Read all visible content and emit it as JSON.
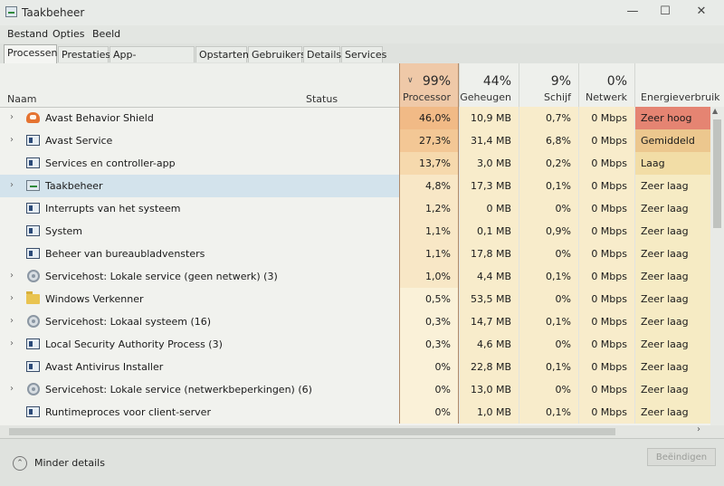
{
  "window": {
    "title": "Taakbeheer",
    "minimize": "—",
    "maximize": "☐",
    "close": "✕"
  },
  "menu": [
    "Bestand",
    "Opties",
    "Beeld"
  ],
  "tabs": [
    "Processen",
    "Prestaties",
    "App-geschiedenis",
    "Opstarten",
    "Gebruikers",
    "Details",
    "Services"
  ],
  "columns": {
    "name": "Naam",
    "status": "Status",
    "processor": {
      "pct": "99%",
      "label": "Processor"
    },
    "memory": {
      "pct": "44%",
      "label": "Geheugen"
    },
    "disk": {
      "pct": "9%",
      "label": "Schijf"
    },
    "network": {
      "pct": "0%",
      "label": "Netwerk"
    },
    "energy": "Energieverbruik"
  },
  "rows": [
    {
      "name": "Avast Behavior Shield",
      "icon": "avast-icon",
      "expand": true,
      "cpu": "46,0%",
      "mem": "10,9 MB",
      "disk": "0,7%",
      "net": "0 Mbps",
      "energy": "Zeer hoog"
    },
    {
      "name": "Avast Service",
      "icon": "service-icon",
      "expand": true,
      "cpu": "27,3%",
      "mem": "31,4 MB",
      "disk": "6,8%",
      "net": "0 Mbps",
      "energy": "Gemiddeld"
    },
    {
      "name": "Services en controller-app",
      "icon": "service-icon",
      "expand": false,
      "cpu": "13,7%",
      "mem": "3,0 MB",
      "disk": "0,2%",
      "net": "0 Mbps",
      "energy": "Laag"
    },
    {
      "name": "Taakbeheer",
      "icon": "taskmanager-icon",
      "expand": true,
      "cpu": "4,8%",
      "mem": "17,3 MB",
      "disk": "0,1%",
      "net": "0 Mbps",
      "energy": "Zeer laag"
    },
    {
      "name": "Interrupts van het systeem",
      "icon": "service-icon",
      "expand": false,
      "cpu": "1,2%",
      "mem": "0 MB",
      "disk": "0%",
      "net": "0 Mbps",
      "energy": "Zeer laag"
    },
    {
      "name": "System",
      "icon": "service-icon",
      "expand": false,
      "cpu": "1,1%",
      "mem": "0,1 MB",
      "disk": "0,9%",
      "net": "0 Mbps",
      "energy": "Zeer laag"
    },
    {
      "name": "Beheer van bureaubladvensters",
      "icon": "service-icon",
      "expand": false,
      "cpu": "1,1%",
      "mem": "17,8 MB",
      "disk": "0%",
      "net": "0 Mbps",
      "energy": "Zeer laag"
    },
    {
      "name": "Servicehost: Lokale service (geen netwerk) (3)",
      "icon": "gear-icon",
      "expand": true,
      "cpu": "1,0%",
      "mem": "4,4 MB",
      "disk": "0,1%",
      "net": "0 Mbps",
      "energy": "Zeer laag"
    },
    {
      "name": "Windows Verkenner",
      "icon": "folder-icon",
      "expand": true,
      "cpu": "0,5%",
      "mem": "53,5 MB",
      "disk": "0%",
      "net": "0 Mbps",
      "energy": "Zeer laag"
    },
    {
      "name": "Servicehost: Lokaal systeem (16)",
      "icon": "gear-icon",
      "expand": true,
      "cpu": "0,3%",
      "mem": "14,7 MB",
      "disk": "0,1%",
      "net": "0 Mbps",
      "energy": "Zeer laag"
    },
    {
      "name": "Local Security Authority Process (3)",
      "icon": "service-icon",
      "expand": true,
      "cpu": "0,3%",
      "mem": "4,6 MB",
      "disk": "0%",
      "net": "0 Mbps",
      "energy": "Zeer laag"
    },
    {
      "name": "Avast Antivirus Installer",
      "icon": "service-icon",
      "expand": false,
      "cpu": "0%",
      "mem": "22,8 MB",
      "disk": "0,1%",
      "net": "0 Mbps",
      "energy": "Zeer laag"
    },
    {
      "name": "Servicehost: Lokale service (netwerkbeperkingen) (6)",
      "icon": "gear-icon",
      "expand": true,
      "cpu": "0%",
      "mem": "13,0 MB",
      "disk": "0%",
      "net": "0 Mbps",
      "energy": "Zeer laag"
    },
    {
      "name": "Runtimeproces voor client-server",
      "icon": "service-icon",
      "expand": false,
      "cpu": "0%",
      "mem": "1,0 MB",
      "disk": "0,1%",
      "net": "0 Mbps",
      "energy": "Zeer laag"
    }
  ],
  "selected_row": "Taakbeheer",
  "footer": {
    "less_details": "Minder details",
    "end_task": "Beëindigen"
  },
  "colors": {
    "processor_header": "#efc9a8",
    "selected_row": "#d3e3ec",
    "energy_very_high": "#e58472",
    "energy_medium": "#ecc78e",
    "energy_low": "#f2dda6",
    "energy_very_low": "#f6ebc4"
  }
}
